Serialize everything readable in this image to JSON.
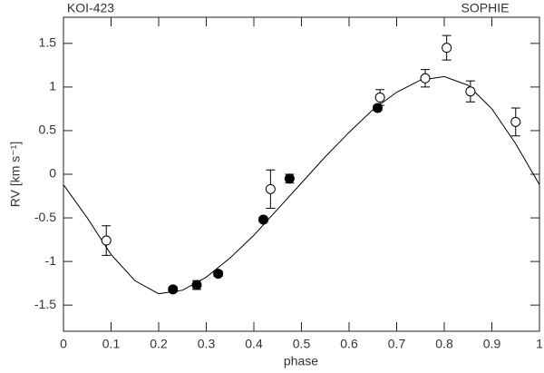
{
  "chart_data": {
    "type": "scatter",
    "annotations": [
      "KOI-423",
      "SOPHIE"
    ],
    "xlabel": "phase",
    "ylabel": "RV [km s⁻¹]",
    "xlim": [
      0,
      1
    ],
    "ylim": [
      -1.8,
      1.8
    ],
    "xticks": [
      0,
      0.1,
      0.2,
      0.3,
      0.4,
      0.5,
      0.6,
      0.7,
      0.8,
      0.9,
      1
    ],
    "yticks": [
      -1.5,
      -1,
      -0.5,
      0,
      0.5,
      1,
      1.5
    ],
    "color": "#000000",
    "series": [
      {
        "marker": "filled",
        "x": [
          0.23,
          0.28,
          0.325,
          0.42,
          0.475,
          0.66
        ],
        "values": [
          -1.32,
          -1.27,
          -1.14,
          -0.52,
          -0.05,
          0.76
        ],
        "errors": [
          0.03,
          0.05,
          0.03,
          0.03,
          0.05,
          0.03
        ]
      },
      {
        "marker": "open",
        "x": [
          0.09,
          0.435,
          0.665,
          0.76,
          0.805,
          0.855,
          0.95
        ],
        "values": [
          -0.76,
          -0.17,
          0.88,
          1.1,
          1.45,
          0.95,
          0.6
        ],
        "errors": [
          0.17,
          0.22,
          0.09,
          0.1,
          0.14,
          0.12,
          0.16
        ]
      }
    ],
    "model": {
      "x": [
        0,
        0.05,
        0.1,
        0.15,
        0.2,
        0.25,
        0.3,
        0.35,
        0.4,
        0.45,
        0.5,
        0.55,
        0.6,
        0.65,
        0.7,
        0.75,
        0.8,
        0.85,
        0.9,
        0.95,
        1
      ],
      "values": [
        -0.12,
        -0.5,
        -0.92,
        -1.22,
        -1.37,
        -1.33,
        -1.18,
        -0.96,
        -0.7,
        -0.4,
        -0.1,
        0.2,
        0.48,
        0.74,
        0.94,
        1.08,
        1.12,
        1.02,
        0.75,
        0.35,
        -0.12
      ]
    }
  }
}
